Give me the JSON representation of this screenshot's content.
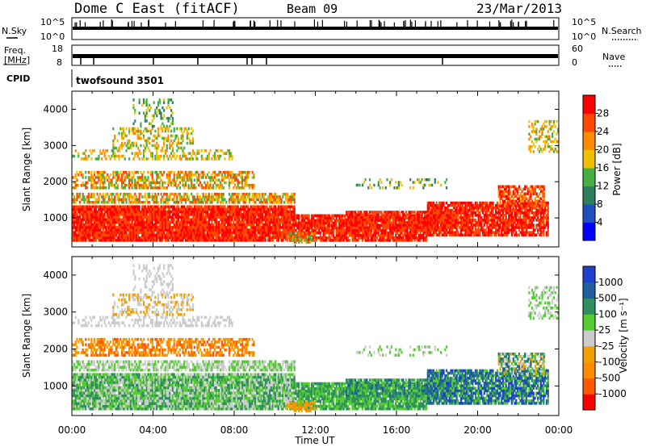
{
  "header": {
    "station": "Dome C East (fitACF)",
    "beam": "Beam 09",
    "date": "23/Mar/2013"
  },
  "top_panels": {
    "nsky_label": "N.Sky",
    "nsky_ticks": [
      "10^5",
      "10^0"
    ],
    "nsearch_label": "N.Search",
    "nsearch_ticks": [
      "10^5",
      "10^0"
    ],
    "freq_label_1": "Freq.",
    "freq_label_2": "[MHz]",
    "freq_ticks": [
      "18",
      "8"
    ],
    "nave_label": "Nave",
    "nave_ticks": [
      "60",
      "0"
    ],
    "cpid_label": "CPID",
    "cpid_value": "twofsound 3501"
  },
  "colors": {
    "power_scale": [
      "#0000ff",
      "#1f4fbf",
      "#2f7f5f",
      "#44b044",
      "#f0c000",
      "#ff8c00",
      "#ff4800",
      "#ff0000"
    ],
    "velocity_scale": [
      "#ff0000",
      "#ff5a00",
      "#ff8c00",
      "#f0a000",
      "#cccccc",
      "#55cc33",
      "#2f8f5f",
      "#1f5fa0",
      "#1f3fcf"
    ]
  },
  "chart_data": [
    {
      "type": "heatmap",
      "name": "power",
      "ylabel": "Slant Range [km]",
      "y_ticks": [
        "1000",
        "2000",
        "3000",
        "4000"
      ],
      "ylim": [
        200,
        4500
      ],
      "x_ticks": [
        "00:00",
        "04:00",
        "08:00",
        "12:00",
        "16:00",
        "20:00",
        "00:00"
      ],
      "colorbar_label": "Power [dB]",
      "colorbar_ticks": [
        "28",
        "24",
        "20",
        "16",
        "12",
        "8",
        "4"
      ]
    },
    {
      "type": "heatmap",
      "name": "velocity",
      "ylabel": "Slant Range [km]",
      "y_ticks": [
        "1000",
        "2000",
        "3000",
        "4000"
      ],
      "ylim": [
        200,
        4500
      ],
      "x_ticks": [
        "00:00",
        "04:00",
        "08:00",
        "12:00",
        "16:00",
        "20:00",
        "00:00"
      ],
      "xlabel": "Time UT",
      "colorbar_label": "Velocity [m s⁻¹]",
      "colorbar_ticks": [
        "1000",
        "500",
        "100",
        "25",
        "-25",
        "-100",
        "-500",
        "-1000"
      ]
    }
  ]
}
